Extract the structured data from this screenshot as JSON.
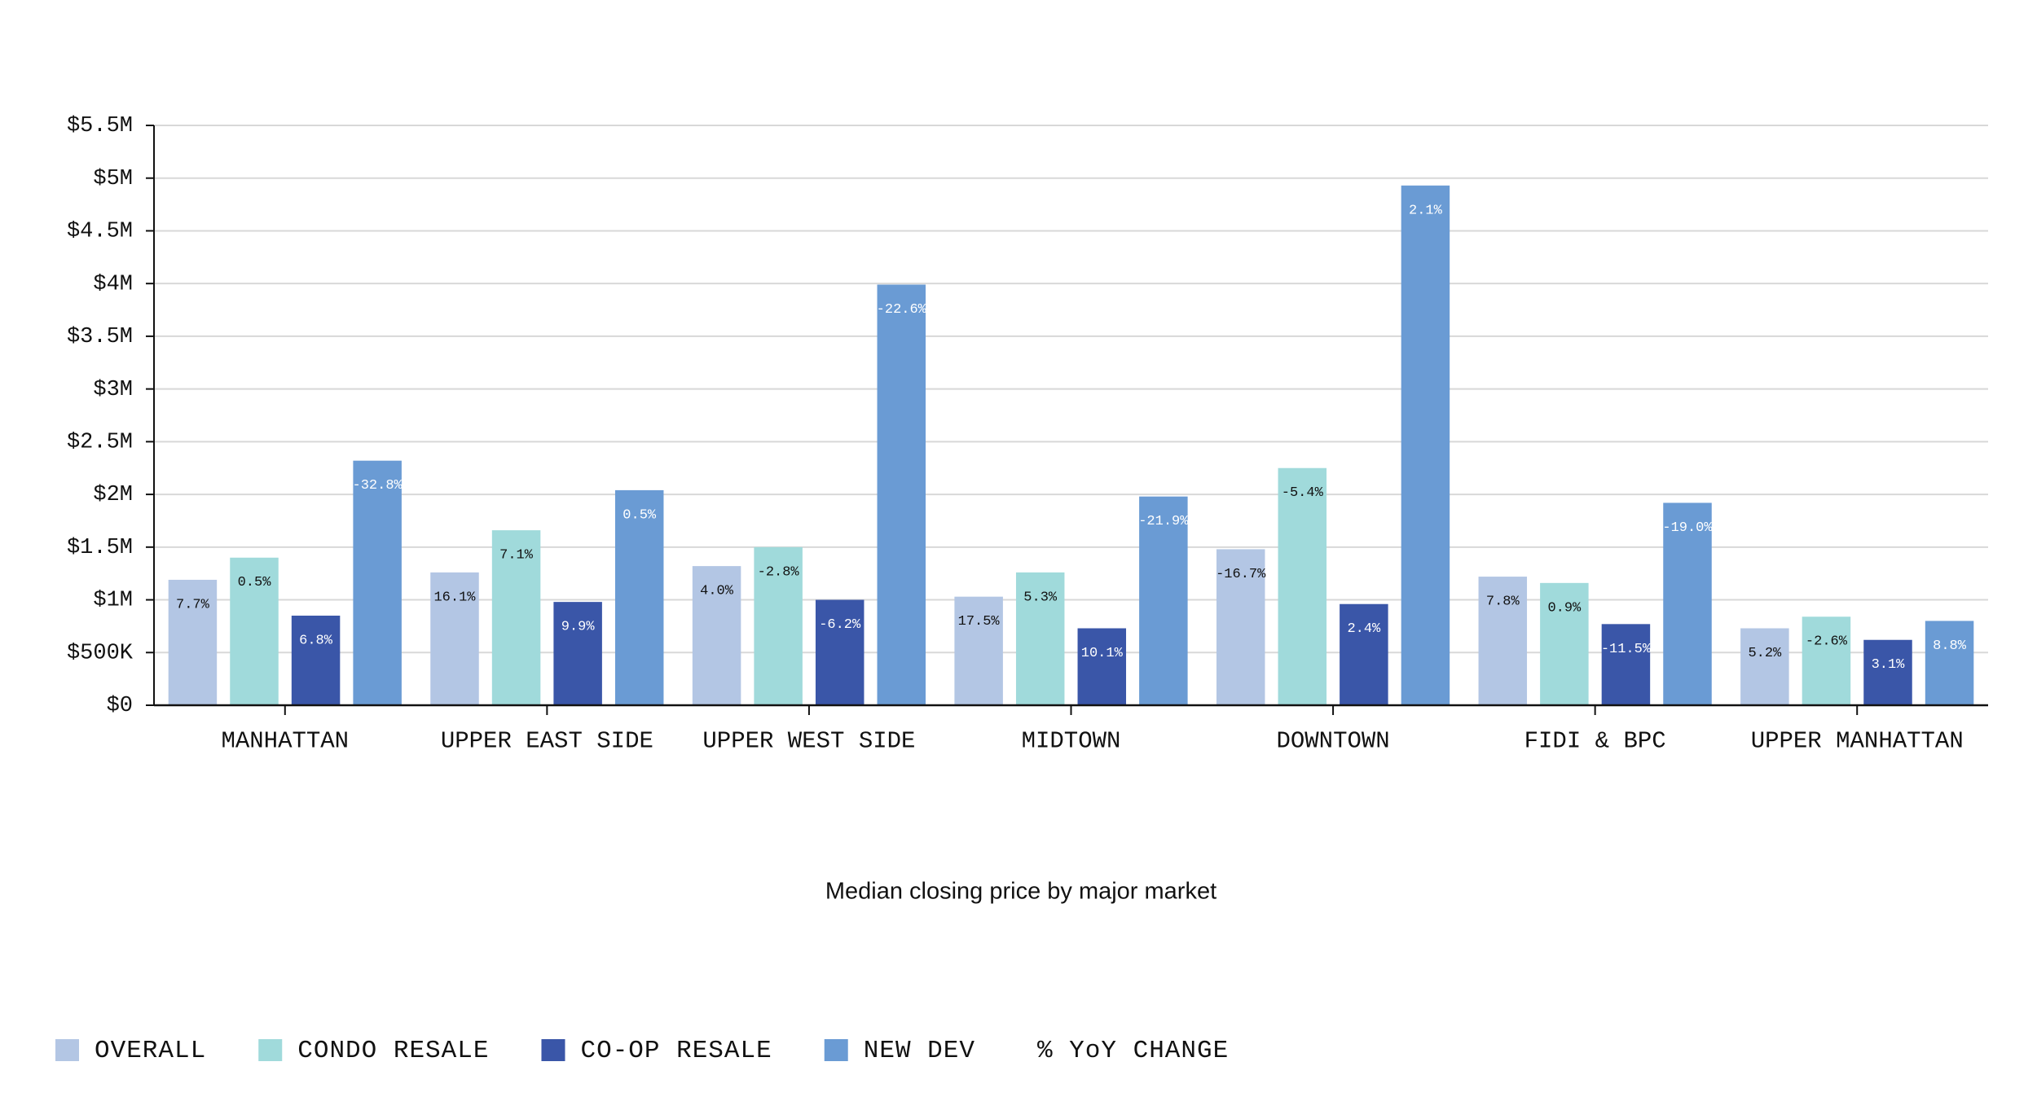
{
  "chart_data": {
    "type": "bar",
    "xlabel": "Median closing price by major market",
    "categories": [
      "MANHATTAN",
      "UPPER EAST SIDE",
      "UPPER WEST SIDE",
      "MIDTOWN",
      "DOWNTOWN",
      "FIDI & BPC",
      "UPPER MANHATTAN"
    ],
    "series": [
      {
        "name": "OVERALL",
        "color": "#b3c6e4",
        "values": [
          1.19,
          1.26,
          1.32,
          1.03,
          1.48,
          1.22,
          0.73
        ],
        "yoy_labels": [
          "7.7%",
          "16.1%",
          "4.0%",
          "17.5%",
          "-16.7%",
          "7.8%",
          "5.2%"
        ]
      },
      {
        "name": "CONDO RESALE",
        "color": "#a0dadb",
        "values": [
          1.4,
          1.66,
          1.5,
          1.26,
          2.25,
          1.16,
          0.84
        ],
        "yoy_labels": [
          "0.5%",
          "7.1%",
          "-2.8%",
          "5.3%",
          "-5.4%",
          "0.9%",
          "-2.6%"
        ]
      },
      {
        "name": "CO-OP RESALE",
        "color": "#3a56a8",
        "values": [
          0.85,
          0.98,
          1.0,
          0.73,
          0.96,
          0.77,
          0.62
        ],
        "yoy_labels": [
          "6.8%",
          "9.9%",
          "-6.2%",
          "10.1%",
          "2.4%",
          "-11.5%",
          "3.1%"
        ]
      },
      {
        "name": "NEW DEV",
        "color": "#6a9bd4",
        "values": [
          2.32,
          2.04,
          3.99,
          1.98,
          4.93,
          1.92,
          0.8
        ],
        "yoy_labels": [
          "-32.8%",
          "0.5%",
          "-22.6%",
          "-21.9%",
          "2.1%",
          "-19.0%",
          "8.8%"
        ]
      }
    ],
    "legend_note": "% YoY CHANGE",
    "ylim": [
      0,
      5.5
    ],
    "yticks": [
      {
        "value": 0,
        "label": "$0"
      },
      {
        "value": 0.5,
        "label": "$500K"
      },
      {
        "value": 1,
        "label": "$1M"
      },
      {
        "value": 1.5,
        "label": "$1.5M"
      },
      {
        "value": 2,
        "label": "$2M"
      },
      {
        "value": 2.5,
        "label": "$2.5M"
      },
      {
        "value": 3,
        "label": "$3M"
      },
      {
        "value": 3.5,
        "label": "$3.5M"
      },
      {
        "value": 4,
        "label": "$4M"
      },
      {
        "value": 4.5,
        "label": "$4.5M"
      },
      {
        "value": 5,
        "label": "$5M"
      },
      {
        "value": 5.5,
        "label": "$5.5M"
      }
    ],
    "grid": true
  }
}
